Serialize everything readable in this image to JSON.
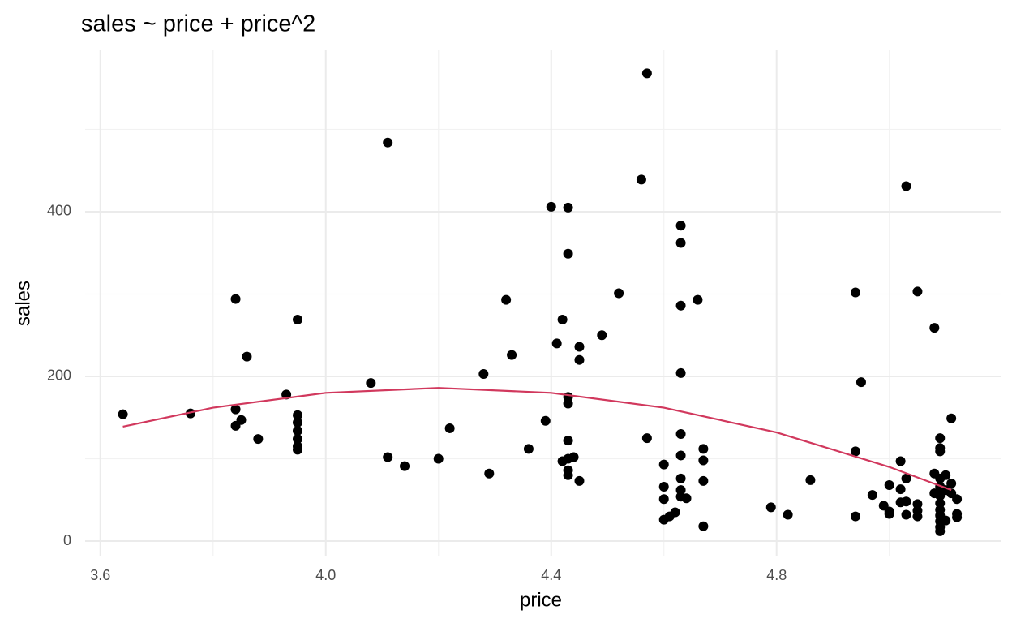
{
  "chart_data": {
    "type": "scatter",
    "title": "sales ~ price + price^2",
    "xlabel": "price",
    "ylabel": "sales",
    "color": "#000000",
    "x": [
      3.64,
      3.76,
      3.84,
      3.84,
      3.84,
      3.85,
      3.86,
      3.88,
      3.93,
      3.95,
      3.95,
      3.95,
      3.95,
      3.95,
      3.95,
      3.95,
      4.08,
      4.11,
      4.11,
      4.14,
      4.2,
      4.22,
      4.28,
      4.29,
      4.32,
      4.33,
      4.36,
      4.39,
      4.4,
      4.41,
      4.42,
      4.42,
      4.43,
      4.43,
      4.43,
      4.43,
      4.43,
      4.43,
      4.43,
      4.43,
      4.44,
      4.45,
      4.45,
      4.45,
      4.49,
      4.52,
      4.56,
      4.57,
      4.57,
      4.6,
      4.6,
      4.6,
      4.6,
      4.61,
      4.62,
      4.63,
      4.63,
      4.63,
      4.63,
      4.63,
      4.63,
      4.63,
      4.63,
      4.63,
      4.64,
      4.66,
      4.67,
      4.67,
      4.67,
      4.67,
      4.79,
      4.82,
      4.86,
      4.94,
      4.94,
      4.94,
      4.95,
      4.97,
      4.99,
      5.0,
      5.0,
      5.0,
      5.02,
      5.02,
      5.02,
      5.03,
      5.03,
      5.03,
      5.03,
      5.05,
      5.05,
      5.05,
      5.05,
      5.08,
      5.08,
      5.08,
      5.09,
      5.09,
      5.09,
      5.09,
      5.09,
      5.09,
      5.09,
      5.09,
      5.09,
      5.09,
      5.09,
      5.09,
      5.1,
      5.1,
      5.1,
      5.11,
      5.11,
      5.11,
      5.12,
      5.12,
      5.12
    ],
    "values": [
      154,
      155,
      294,
      160,
      140,
      147,
      224,
      124,
      178,
      269,
      153,
      144,
      134,
      124,
      115,
      111,
      192,
      484,
      102,
      91,
      100,
      137,
      203,
      82,
      293,
      226,
      112,
      146,
      406,
      240,
      269,
      97,
      405,
      349,
      175,
      167,
      122,
      100,
      86,
      80,
      102,
      236,
      220,
      73,
      250,
      301,
      439,
      568,
      125,
      93,
      66,
      51,
      26,
      30,
      35,
      383,
      362,
      286,
      204,
      130,
      104,
      76,
      62,
      54,
      52,
      293,
      112,
      98,
      73,
      18,
      41,
      32,
      74,
      302,
      109,
      30,
      193,
      56,
      43,
      68,
      36,
      33,
      97,
      63,
      47,
      431,
      76,
      48,
      32,
      303,
      45,
      37,
      30,
      259,
      82,
      58,
      125,
      113,
      109,
      76,
      66,
      55,
      46,
      38,
      31,
      24,
      17,
      12,
      80,
      62,
      25,
      149,
      70,
      58,
      51,
      33,
      29
    ],
    "fit": {
      "color": "#d1385d",
      "x": [
        3.64,
        3.8,
        4.0,
        4.2,
        4.4,
        4.6,
        4.8,
        5.0,
        5.11
      ],
      "values": [
        139,
        162,
        180,
        186,
        180,
        162,
        132,
        90,
        62
      ]
    },
    "xlim": [
      3.573,
      5.199
    ],
    "ylim": [
      -18.7,
      596
    ],
    "xticks": [
      3.6,
      {
        "value": 4,
        "label": "4.0"
      },
      4.4,
      4.8
    ],
    "yticks": [
      0,
      200,
      400
    ],
    "xminor": [
      3.8,
      4.2,
      4.6,
      5
    ],
    "yminor": [
      100,
      300,
      500
    ],
    "grid": true
  }
}
